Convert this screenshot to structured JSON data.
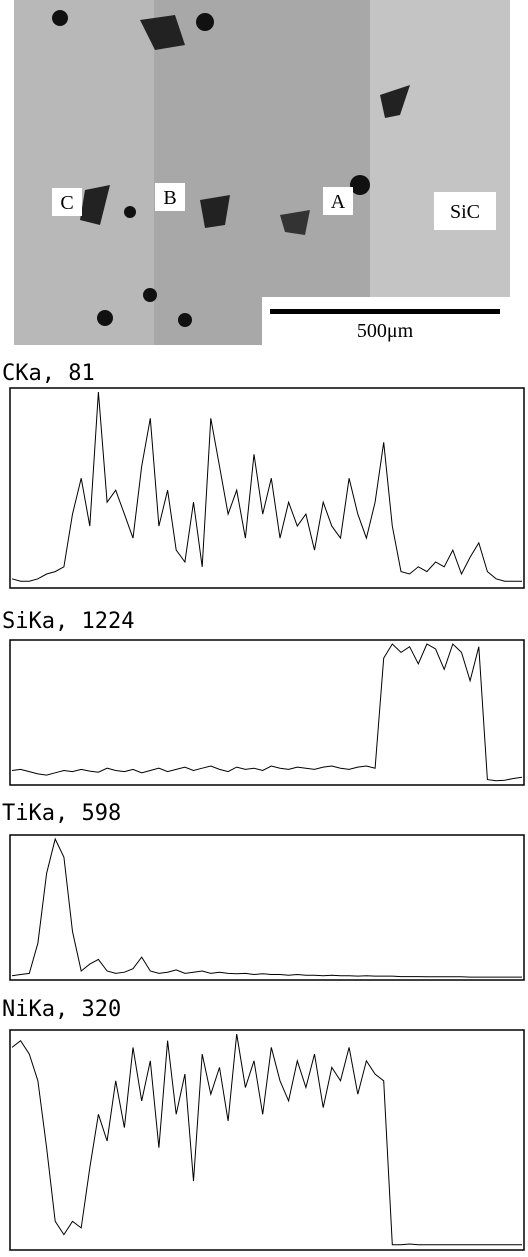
{
  "micrograph": {
    "labels": [
      "C",
      "B",
      "A",
      "SiC"
    ],
    "scale_bar": "500μm"
  },
  "chart_data": [
    {
      "type": "line",
      "title": "CKa, 81",
      "color": "#000000",
      "ylim": [
        0,
        81
      ],
      "values": [
        3,
        2,
        2,
        3,
        5,
        6,
        8,
        30,
        45,
        25,
        81,
        35,
        40,
        30,
        20,
        50,
        70,
        25,
        40,
        15,
        10,
        35,
        8,
        70,
        50,
        30,
        40,
        20,
        55,
        30,
        45,
        20,
        35,
        25,
        30,
        15,
        35,
        25,
        20,
        45,
        30,
        20,
        35,
        60,
        25,
        6,
        5,
        8,
        6,
        10,
        8,
        15,
        5,
        12,
        18,
        6,
        3,
        2,
        2,
        2
      ]
    },
    {
      "type": "line",
      "title": "SiKa, 1224",
      "color": "#000000",
      "ylim": [
        0,
        1224
      ],
      "values": [
        110,
        120,
        100,
        80,
        70,
        90,
        110,
        100,
        120,
        105,
        95,
        130,
        110,
        100,
        120,
        90,
        110,
        130,
        100,
        120,
        140,
        110,
        130,
        150,
        120,
        100,
        140,
        120,
        130,
        110,
        150,
        130,
        120,
        140,
        130,
        120,
        140,
        150,
        130,
        120,
        140,
        150,
        130,
        1100,
        1224,
        1150,
        1200,
        1050,
        1224,
        1180,
        1000,
        1224,
        1150,
        900,
        1200,
        30,
        20,
        25,
        40,
        50
      ]
    },
    {
      "type": "line",
      "title": "TiKa, 598",
      "color": "#000000",
      "ylim": [
        0,
        598
      ],
      "values": [
        10,
        15,
        20,
        150,
        450,
        598,
        520,
        200,
        30,
        60,
        80,
        30,
        20,
        25,
        40,
        90,
        30,
        20,
        25,
        35,
        20,
        25,
        30,
        20,
        25,
        20,
        18,
        20,
        15,
        18,
        15,
        15,
        12,
        15,
        12,
        12,
        10,
        12,
        10,
        10,
        8,
        10,
        8,
        8,
        8,
        6,
        6,
        6,
        5,
        5,
        5,
        5,
        5,
        4,
        4,
        4,
        4,
        4,
        4,
        4
      ]
    },
    {
      "type": "line",
      "title": "NiKa, 320",
      "color": "#000000",
      "ylim": [
        0,
        320
      ],
      "values": [
        300,
        310,
        290,
        250,
        150,
        40,
        20,
        40,
        30,
        120,
        200,
        160,
        250,
        180,
        300,
        220,
        280,
        150,
        310,
        200,
        260,
        100,
        290,
        230,
        270,
        190,
        320,
        240,
        280,
        200,
        300,
        250,
        220,
        280,
        240,
        290,
        210,
        270,
        250,
        300,
        230,
        280,
        260,
        250,
        5,
        5,
        6,
        5,
        5,
        5,
        5,
        5,
        5,
        5,
        5,
        5,
        5,
        5,
        5,
        5
      ]
    }
  ]
}
